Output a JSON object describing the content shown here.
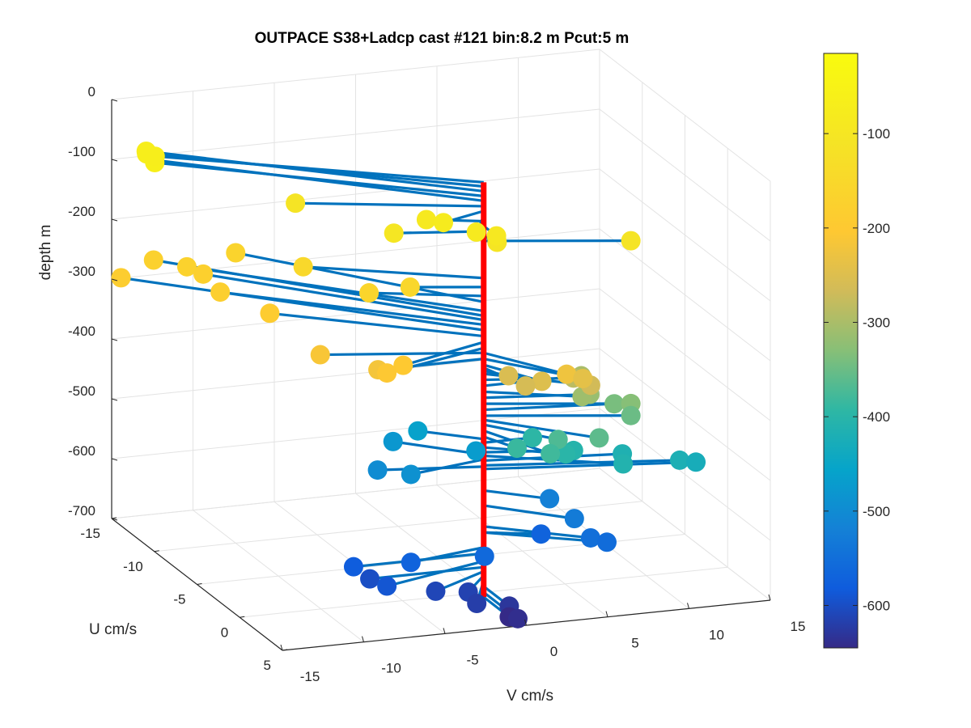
{
  "chart_data": {
    "type": "scatter",
    "title": "OUTPACE S38+Ladcp cast #121 bin:8.2 m  Pcut:5 m",
    "zlabel": "depth m",
    "ulabel": "U cm/s",
    "vlabel": "V cm/s",
    "depth_ticks": [
      "0",
      "-100",
      "-200",
      "-300",
      "-400",
      "-500",
      "-600",
      "-700"
    ],
    "u_ticks": [
      "-15",
      "-10",
      "-5",
      "0",
      "5"
    ],
    "v_ticks": [
      "-15",
      "-10",
      "-5",
      "0",
      "5",
      "10",
      "15"
    ],
    "colorbar_ticks": [
      "-100",
      "-200",
      "-300",
      "-400",
      "-500",
      "-600"
    ],
    "zlim": [
      -700,
      0
    ],
    "ulim": [
      -15,
      5
    ],
    "vlim": [
      -15,
      15
    ],
    "clim": [
      -645,
      -15
    ],
    "colormap": "parula",
    "grid": true,
    "vector_color": "#0072bd",
    "axis_line_color": "#ff0000",
    "points": [
      {
        "depth": -15,
        "u": -8,
        "v": -16,
        "cbin": -70
      },
      {
        "depth": -22,
        "u": -9,
        "v": -16,
        "cbin": -70
      },
      {
        "depth": -30,
        "u": -10,
        "v": -15.5,
        "cbin": -68
      },
      {
        "depth": -38,
        "u": -9,
        "v": -15.5,
        "cbin": -66
      },
      {
        "depth": -46,
        "u": -10,
        "v": -15,
        "cbin": -64
      },
      {
        "depth": -55,
        "u": -3,
        "v": -10,
        "cbin": -110
      },
      {
        "depth": -63,
        "u": 1,
        "v": -3,
        "cbin": -80
      },
      {
        "depth": -72,
        "u": 2,
        "v": -1.5,
        "cbin": -85
      },
      {
        "depth": -80,
        "u": -1,
        "v": -3,
        "cbin": -90
      },
      {
        "depth": -88,
        "u": 1.5,
        "v": 0,
        "cbin": -95
      },
      {
        "depth": -97,
        "u": -1,
        "v": -5,
        "cbin": -100
      },
      {
        "depth": -105,
        "u": 1,
        "v": 0.3,
        "cbin": -105
      },
      {
        "depth": -113,
        "u": 2,
        "v": 8,
        "cbin": -110
      },
      {
        "depth": -175,
        "u": -4,
        "v": -9,
        "cbin": -150
      },
      {
        "depth": -190,
        "u": -1,
        "v": -4,
        "cbin": -155
      },
      {
        "depth": -205,
        "u": -2,
        "v": -6,
        "cbin": -160
      },
      {
        "depth": -215,
        "u": -10,
        "v": -10,
        "cbin": -165
      },
      {
        "depth": -230,
        "u": -10,
        "v": -13,
        "cbin": -170
      },
      {
        "depth": -238,
        "u": -12,
        "v": -14,
        "cbin": -175
      },
      {
        "depth": -245,
        "u": -10,
        "v": -12,
        "cbin": -178
      },
      {
        "depth": -253,
        "u": -8,
        "v": -12,
        "cbin": -182
      },
      {
        "depth": -262,
        "u": -12,
        "v": -16,
        "cbin": -186
      },
      {
        "depth": -272,
        "u": -6,
        "v": -10,
        "cbin": -190
      },
      {
        "depth": -282,
        "u": 2,
        "v": -6,
        "cbin": -200
      },
      {
        "depth": -292,
        "u": 2,
        "v": -7,
        "cbin": -205
      },
      {
        "depth": -300,
        "u": -2,
        "v": -9,
        "cbin": -212
      },
      {
        "depth": -310,
        "u": 0,
        "v": -6.5,
        "cbin": -218
      },
      {
        "depth": -300,
        "u": 4,
        "v": 3,
        "cbin": -225
      },
      {
        "depth": -310,
        "u": 4,
        "v": 4,
        "cbin": -240
      },
      {
        "depth": -320,
        "u": 3,
        "v": 2,
        "cbin": -250
      },
      {
        "depth": -330,
        "u": 1,
        "v": 1,
        "cbin": -255
      },
      {
        "depth": -325,
        "u": 3,
        "v": 1,
        "cbin": -260
      },
      {
        "depth": -335,
        "u": 3,
        "v": 5,
        "cbin": -265
      },
      {
        "depth": -345,
        "u": 1,
        "v": 5,
        "cbin": -285
      },
      {
        "depth": -355,
        "u": 0,
        "v": 6,
        "cbin": -300
      },
      {
        "depth": -365,
        "u": 2,
        "v": 5,
        "cbin": -310
      },
      {
        "depth": -375,
        "u": 1,
        "v": 6,
        "cbin": -315
      },
      {
        "depth": -385,
        "u": 2,
        "v": 8,
        "cbin": -330
      },
      {
        "depth": -395,
        "u": 1,
        "v": 7.5,
        "cbin": -340
      },
      {
        "depth": -405,
        "u": 2,
        "v": 8,
        "cbin": -350
      },
      {
        "depth": -412,
        "u": 4,
        "v": 5,
        "cbin": -360
      },
      {
        "depth": -420,
        "u": 3,
        "v": 3,
        "cbin": -370
      },
      {
        "depth": -430,
        "u": 4,
        "v": 2,
        "cbin": -380
      },
      {
        "depth": -440,
        "u": 2,
        "v": 1,
        "cbin": -385
      },
      {
        "depth": -450,
        "u": 0,
        "v": 3,
        "cbin": -395
      },
      {
        "depth": -458,
        "u": 2,
        "v": 4,
        "cbin": -400
      },
      {
        "depth": -466,
        "u": 1,
        "v": 5,
        "cbin": -405
      },
      {
        "depth": -472,
        "u": 3,
        "v": 7,
        "cbin": -410
      },
      {
        "depth": -480,
        "u": 1,
        "v": 8,
        "cbin": -415
      },
      {
        "depth": -488,
        "u": 2,
        "v": 11,
        "cbin": -420
      },
      {
        "depth": -494,
        "u": 2,
        "v": 12,
        "cbin": -428
      },
      {
        "depth": -444,
        "u": -2,
        "v": -3,
        "cbin": -460
      },
      {
        "depth": -450,
        "u": 1,
        "v": -1,
        "cbin": -470
      },
      {
        "depth": -470,
        "u": -3,
        "v": -4,
        "cbin": -480
      },
      {
        "depth": -478,
        "u": 1,
        "v": -5,
        "cbin": -490
      },
      {
        "depth": -490,
        "u": -1,
        "v": -6,
        "cbin": -500
      },
      {
        "depth": -530,
        "u": 2,
        "v": 3,
        "cbin": -520
      },
      {
        "depth": -555,
        "u": 3,
        "v": 4,
        "cbin": -530
      },
      {
        "depth": -590,
        "u": 3,
        "v": 5,
        "cbin": -550
      },
      {
        "depth": -600,
        "u": 3,
        "v": 6,
        "cbin": -555
      },
      {
        "depth": -600,
        "u": 1,
        "v": 3,
        "cbin": -570
      },
      {
        "depth": -615,
        "u": 2,
        "v": -1,
        "cbin": -560
      },
      {
        "depth": -625,
        "u": 1,
        "v": -5,
        "cbin": -570
      },
      {
        "depth": -635,
        "u": 0,
        "v": -8,
        "cbin": -580
      },
      {
        "depth": -648,
        "u": 2,
        "v": -7,
        "cbin": -590
      },
      {
        "depth": -658,
        "u": 0,
        "v": -7,
        "cbin": -600
      },
      {
        "depth": -665,
        "u": 2,
        "v": -4,
        "cbin": -610
      },
      {
        "depth": -672,
        "u": 2,
        "v": -2,
        "cbin": -615
      },
      {
        "depth": -680,
        "u": 3,
        "v": -2,
        "cbin": -620
      },
      {
        "depth": -690,
        "u": 3,
        "v": 0,
        "cbin": -630
      },
      {
        "depth": -700,
        "u": 4,
        "v": 0,
        "cbin": -640
      },
      {
        "depth": -708,
        "u": 3,
        "v": 0,
        "cbin": -645
      }
    ]
  }
}
